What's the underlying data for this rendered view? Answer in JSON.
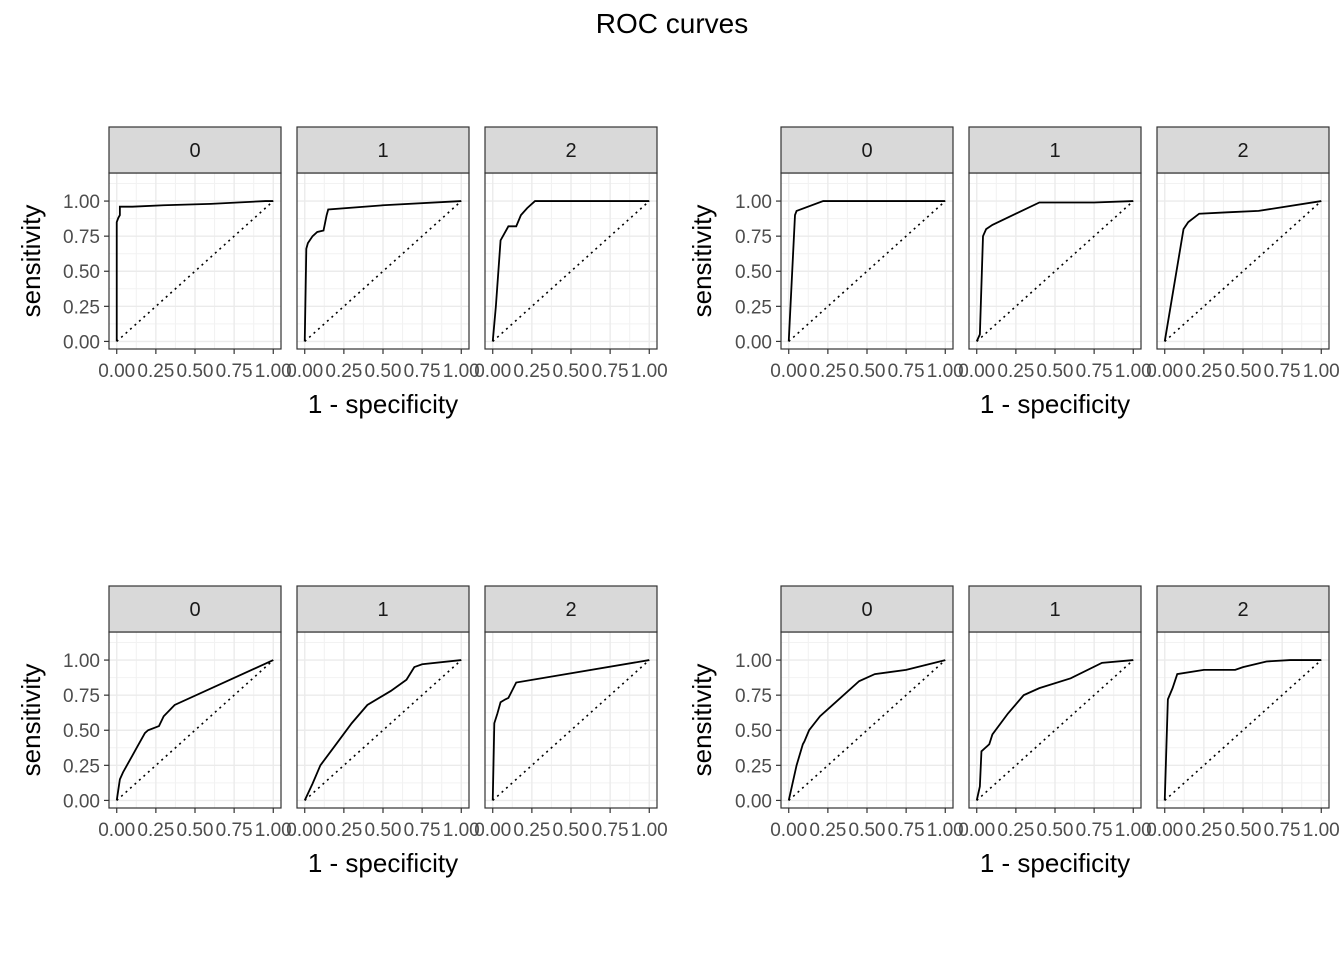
{
  "title": "ROC curves",
  "chart_data": [
    {
      "type": "line",
      "xlabel": "1 - specificity",
      "ylabel": "sensitivity",
      "xlim": [
        0,
        1
      ],
      "ylim": [
        0,
        1
      ],
      "x_ticks": [
        "0.00",
        "0.25",
        "0.50",
        "0.75",
        "1.00"
      ],
      "y_ticks": [
        "0.00",
        "0.25",
        "0.50",
        "0.75",
        "1.00"
      ],
      "facets": [
        {
          "label": "0",
          "x": [
            0,
            0,
            0.01,
            0.02,
            0.02,
            0.1,
            0.3,
            0.6,
            0.95,
            1.0
          ],
          "y": [
            0,
            0.85,
            0.88,
            0.9,
            0.96,
            0.96,
            0.97,
            0.98,
            1.0,
            1.0
          ]
        },
        {
          "label": "1",
          "x": [
            0,
            0.01,
            0.02,
            0.05,
            0.08,
            0.12,
            0.14,
            0.15,
            0.5,
            1.0
          ],
          "y": [
            0,
            0.66,
            0.7,
            0.75,
            0.78,
            0.79,
            0.9,
            0.94,
            0.97,
            1.0
          ]
        },
        {
          "label": "2",
          "x": [
            0,
            0.02,
            0.05,
            0.1,
            0.15,
            0.18,
            0.22,
            0.27,
            0.5,
            1.0
          ],
          "y": [
            0,
            0.25,
            0.72,
            0.82,
            0.82,
            0.9,
            0.95,
            1.0,
            1.0,
            1.0
          ]
        }
      ]
    },
    {
      "type": "line",
      "xlabel": "1 - specificity",
      "ylabel": "sensitivity",
      "xlim": [
        0,
        1
      ],
      "ylim": [
        0,
        1
      ],
      "x_ticks": [
        "0.00",
        "0.25",
        "0.50",
        "0.75",
        "1.00"
      ],
      "y_ticks": [
        "0.00",
        "0.25",
        "0.50",
        "0.75",
        "1.00"
      ],
      "facets": [
        {
          "label": "0",
          "x": [
            0,
            0.04,
            0.05,
            0.22,
            0.5,
            1.0
          ],
          "y": [
            0,
            0.9,
            0.93,
            1.0,
            1.0,
            1.0
          ]
        },
        {
          "label": "1",
          "x": [
            0,
            0.02,
            0.04,
            0.06,
            0.1,
            0.4,
            0.75,
            1.0
          ],
          "y": [
            0,
            0.05,
            0.75,
            0.8,
            0.83,
            0.99,
            0.99,
            1.0
          ]
        },
        {
          "label": "2",
          "x": [
            0,
            0.12,
            0.15,
            0.22,
            0.4,
            0.6,
            1.0
          ],
          "y": [
            0,
            0.8,
            0.85,
            0.91,
            0.92,
            0.93,
            1.0
          ]
        }
      ]
    },
    {
      "type": "line",
      "xlabel": "1 - specificity",
      "ylabel": "sensitivity",
      "xlim": [
        0,
        1
      ],
      "ylim": [
        0,
        1
      ],
      "x_ticks": [
        "0.00",
        "0.25",
        "0.50",
        "0.75",
        "1.00"
      ],
      "y_ticks": [
        "0.00",
        "0.25",
        "0.50",
        "0.75",
        "1.00"
      ],
      "facets": [
        {
          "label": "0",
          "x": [
            0,
            0.02,
            0.04,
            0.1,
            0.13,
            0.18,
            0.2,
            0.27,
            0.3,
            0.37,
            1.0
          ],
          "y": [
            0,
            0.15,
            0.2,
            0.32,
            0.38,
            0.48,
            0.5,
            0.53,
            0.6,
            0.68,
            1.0
          ]
        },
        {
          "label": "1",
          "x": [
            0,
            0.05,
            0.1,
            0.2,
            0.3,
            0.4,
            0.55,
            0.65,
            0.7,
            0.75,
            1.0
          ],
          "y": [
            0,
            0.12,
            0.25,
            0.4,
            0.55,
            0.68,
            0.78,
            0.86,
            0.95,
            0.97,
            1.0
          ]
        },
        {
          "label": "2",
          "x": [
            0,
            0.01,
            0.03,
            0.05,
            0.08,
            0.1,
            0.15,
            1.0
          ],
          "y": [
            0,
            0.55,
            0.62,
            0.7,
            0.72,
            0.73,
            0.84,
            1.0
          ]
        }
      ]
    },
    {
      "type": "line",
      "xlabel": "1 - specificity",
      "ylabel": "sensitivity",
      "xlim": [
        0,
        1
      ],
      "ylim": [
        0,
        1
      ],
      "x_ticks": [
        "0.00",
        "0.25",
        "0.50",
        "0.75",
        "1.00"
      ],
      "y_ticks": [
        "0.00",
        "0.25",
        "0.50",
        "0.75",
        "1.00"
      ],
      "facets": [
        {
          "label": "0",
          "x": [
            0,
            0.05,
            0.09,
            0.1,
            0.13,
            0.2,
            0.3,
            0.45,
            0.55,
            0.75,
            1.0
          ],
          "y": [
            0,
            0.25,
            0.4,
            0.42,
            0.5,
            0.6,
            0.7,
            0.85,
            0.9,
            0.93,
            1.0
          ]
        },
        {
          "label": "1",
          "x": [
            0,
            0.02,
            0.03,
            0.08,
            0.1,
            0.2,
            0.3,
            0.4,
            0.6,
            0.8,
            1.0
          ],
          "y": [
            0,
            0.1,
            0.35,
            0.4,
            0.47,
            0.62,
            0.75,
            0.8,
            0.87,
            0.98,
            1.0
          ]
        },
        {
          "label": "2",
          "x": [
            0,
            0.02,
            0.05,
            0.08,
            0.25,
            0.45,
            0.5,
            0.65,
            0.8,
            1.0
          ],
          "y": [
            0,
            0.72,
            0.8,
            0.9,
            0.93,
            0.93,
            0.95,
            0.99,
            1.0,
            1.0
          ]
        }
      ]
    }
  ]
}
